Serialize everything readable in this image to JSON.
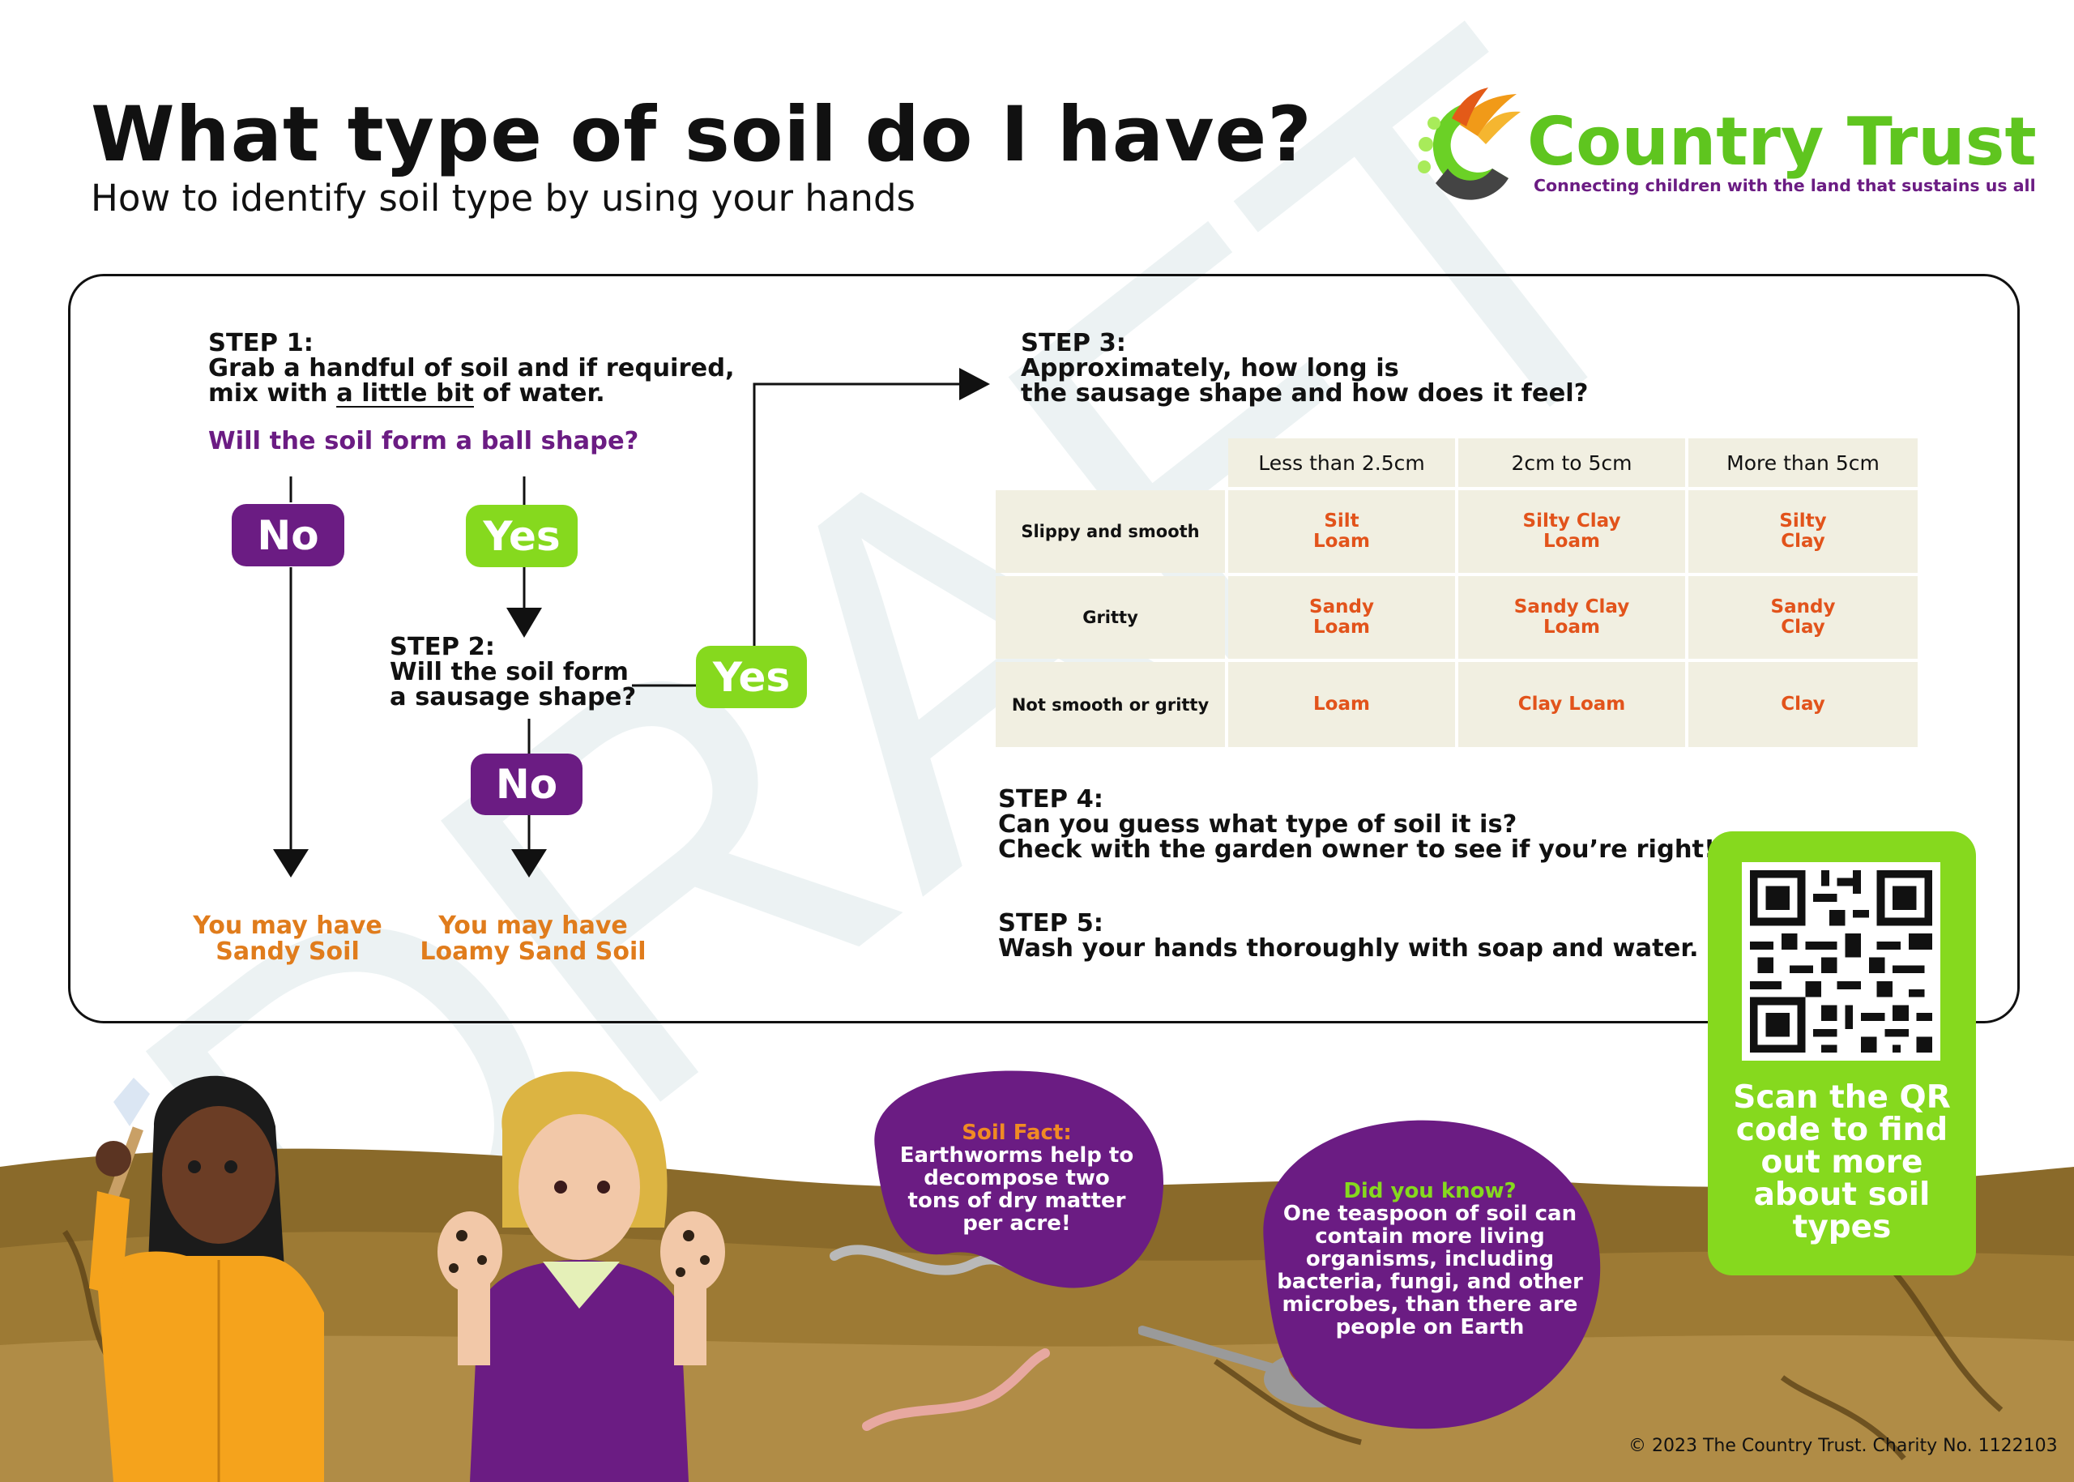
{
  "header": {
    "title": "What type of soil do I have?",
    "subtitle": "How to identify soil type by using your hands"
  },
  "brand": {
    "name": "Country Trust",
    "tagline": "Connecting children with the land that sustains us all",
    "color_green": "#5fc51f",
    "color_purple": "#6b1c83"
  },
  "watermark": "DRAFT",
  "step1": {
    "label": "STEP 1:",
    "line1": "Grab a handful of soil and if required,",
    "line2_pre": "mix with ",
    "line2_underlined": "a little bit",
    "line2_post": " of water.",
    "question": "Will the soil form a ball shape?",
    "no_label": "No",
    "yes_label": "Yes"
  },
  "step2": {
    "label": "STEP 2:",
    "line1": "Will the soil form",
    "line2": "a sausage shape?",
    "yes_label": "Yes",
    "no_label": "No"
  },
  "outcomes": {
    "sandy_line1": "You may have",
    "sandy_line2": "Sandy Soil",
    "loamy_line1": "You may have",
    "loamy_line2": "Loamy Sand Soil"
  },
  "step3": {
    "label": "STEP 3:",
    "line1": "Approximately, how long is",
    "line2": "the sausage shape and how does it feel?",
    "table": {
      "columns": [
        "Less than 2.5cm",
        "2cm to 5cm",
        "More than 5cm"
      ],
      "rows": [
        {
          "feel": "Slippy and smooth",
          "cells": [
            [
              "Silt",
              "Loam"
            ],
            [
              "Silty Clay",
              "Loam"
            ],
            [
              "Silty",
              "Clay"
            ]
          ]
        },
        {
          "feel": "Gritty",
          "cells": [
            [
              "Sandy",
              "Loam"
            ],
            [
              "Sandy Clay",
              "Loam"
            ],
            [
              "Sandy",
              "Clay"
            ]
          ]
        },
        {
          "feel": "Not smooth or gritty",
          "cells": [
            [
              "Loam"
            ],
            [
              "Clay Loam"
            ],
            [
              "Clay"
            ]
          ]
        }
      ]
    }
  },
  "step4": {
    "label": "STEP 4:",
    "line1": "Can you guess what type of soil it is?",
    "line2": "Check with the garden owner to see if you’re right!"
  },
  "step5": {
    "label": "STEP 5:",
    "line1": "Wash your hands thoroughly with soap and water."
  },
  "qr": {
    "caption_lines": [
      "Scan the QR",
      "code to find",
      "out more",
      "about soil",
      "types"
    ]
  },
  "soil_fact": {
    "title": "Soil Fact:",
    "lines": [
      "Earthworms help to",
      "decompose two",
      "tons of dry matter",
      "per acre!"
    ]
  },
  "did_you_know": {
    "title": "Did you know?",
    "lines": [
      "One teaspoon of soil can",
      "contain more living",
      "organisms, including",
      "bacteria, fungi, and other",
      "microbes, than there are",
      "people on Earth"
    ]
  },
  "footer": {
    "copyright": "© 2023 The Country Trust. Charity No. 1122103"
  }
}
